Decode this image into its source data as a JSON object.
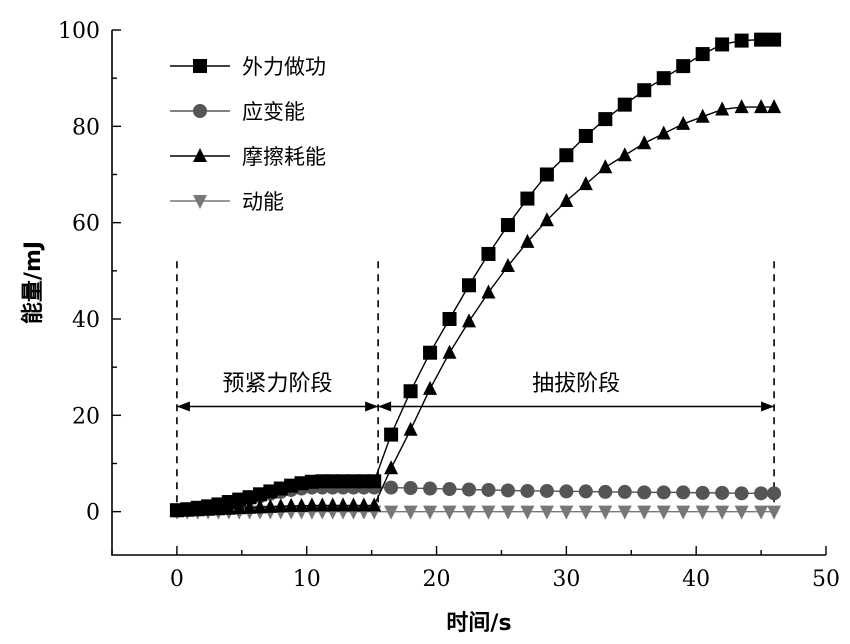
{
  "chart_data": {
    "type": "line",
    "xlabel": "时间/s",
    "ylabel": "能量/mJ",
    "xlim": [
      -5,
      50
    ],
    "ylim": [
      -9,
      100
    ],
    "xticks": [
      0,
      10,
      20,
      30,
      40,
      50
    ],
    "yticks": [
      0,
      20,
      40,
      60,
      80,
      100
    ],
    "legend_position": "top-left",
    "grid": false,
    "series": [
      {
        "name": "外力做功",
        "marker": "square",
        "color": "#000000",
        "x": [
          0,
          0.8,
          1.6,
          2.4,
          3.2,
          4,
          4.8,
          5.6,
          6.4,
          7.2,
          8,
          8.8,
          9.6,
          10.4,
          11.2,
          12,
          12.8,
          13.6,
          14.4,
          15.2,
          16.5,
          18,
          19.5,
          21,
          22.5,
          24,
          25.5,
          27,
          28.5,
          30,
          31.5,
          33,
          34.5,
          36,
          37.5,
          39,
          40.5,
          42,
          43.5,
          45,
          46
        ],
        "y": [
          0.3,
          0.5,
          0.8,
          1.1,
          1.5,
          2,
          2.5,
          3,
          3.6,
          4.2,
          4.8,
          5.4,
          5.9,
          6.2,
          6.3,
          6.3,
          6.3,
          6.3,
          6.3,
          6.3,
          16,
          25,
          33,
          40,
          47,
          53.5,
          59.5,
          65,
          70,
          74,
          78,
          81.5,
          84.5,
          87.5,
          90,
          92.5,
          95,
          97,
          97.8,
          98,
          98
        ]
      },
      {
        "name": "应变能",
        "marker": "circle",
        "color": "#555555",
        "x": [
          0,
          0.8,
          1.6,
          2.4,
          3.2,
          4,
          4.8,
          5.6,
          6.4,
          7.2,
          8,
          8.8,
          9.6,
          10.4,
          11.2,
          12,
          12.8,
          13.6,
          14.4,
          15.2,
          16.5,
          18,
          19.5,
          21,
          22.5,
          24,
          25.5,
          27,
          28.5,
          30,
          31.5,
          33,
          34.5,
          36,
          37.5,
          39,
          40.5,
          42,
          43.5,
          45,
          46
        ],
        "y": [
          0.2,
          0.4,
          0.7,
          1,
          1.4,
          1.8,
          2.2,
          2.7,
          3.2,
          3.7,
          4.1,
          4.5,
          4.8,
          5,
          5,
          5,
          5,
          5,
          5,
          5,
          5,
          4.9,
          4.8,
          4.7,
          4.6,
          4.5,
          4.4,
          4.3,
          4.3,
          4.2,
          4.2,
          4.1,
          4.1,
          4,
          4,
          4,
          3.9,
          3.9,
          3.8,
          3.8,
          3.8
        ]
      },
      {
        "name": "摩擦耗能",
        "marker": "triangle-up",
        "color": "#000000",
        "x": [
          0,
          0.8,
          1.6,
          2.4,
          3.2,
          4,
          4.8,
          5.6,
          6.4,
          7.2,
          8,
          8.8,
          9.6,
          10.4,
          11.2,
          12,
          12.8,
          13.6,
          14.4,
          15.2,
          16.5,
          18,
          19.5,
          21,
          22.5,
          24,
          25.5,
          27,
          28.5,
          30,
          31.5,
          33,
          34.5,
          36,
          37.5,
          39,
          40.5,
          42,
          43.5,
          45,
          46
        ],
        "y": [
          0.1,
          0.2,
          0.3,
          0.4,
          0.5,
          0.6,
          0.7,
          0.8,
          0.9,
          1,
          1.1,
          1.2,
          1.2,
          1.3,
          1.3,
          1.3,
          1.3,
          1.3,
          1.3,
          1.3,
          9,
          17,
          25.5,
          33,
          39.5,
          45.5,
          51,
          56,
          60.5,
          64.5,
          68,
          71.5,
          74,
          76.5,
          78.5,
          80.5,
          82,
          83.5,
          84,
          84,
          84
        ]
      },
      {
        "name": "动能",
        "marker": "triangle-down",
        "color": "#777777",
        "x": [
          0,
          0.8,
          1.6,
          2.4,
          3.2,
          4,
          4.8,
          5.6,
          6.4,
          7.2,
          8,
          8.8,
          9.6,
          10.4,
          11.2,
          12,
          12.8,
          13.6,
          14.4,
          15.2,
          16.5,
          18,
          19.5,
          21,
          22.5,
          24,
          25.5,
          27,
          28.5,
          30,
          31.5,
          33,
          34.5,
          36,
          37.5,
          39,
          40.5,
          42,
          43.5,
          45,
          46
        ],
        "y": [
          0,
          0,
          0,
          0,
          0,
          0,
          0,
          0,
          0,
          0,
          0,
          0,
          0,
          0,
          0,
          0,
          0,
          0,
          0,
          0,
          0,
          0,
          0,
          0,
          0,
          0,
          0,
          0,
          0,
          0,
          0,
          0,
          0,
          0,
          0,
          0,
          0,
          0,
          0,
          0,
          0
        ]
      }
    ],
    "annotations": [
      {
        "text": "预紧力阶段",
        "x_start": 0,
        "x_end": 15.5,
        "y": 21
      },
      {
        "text": "抽拔阶段",
        "x_start": 15.5,
        "x_end": 46,
        "y": 21
      }
    ],
    "phase_boundaries_x": [
      0,
      15.5,
      46
    ],
    "phase_boundary_ytop": 52
  }
}
